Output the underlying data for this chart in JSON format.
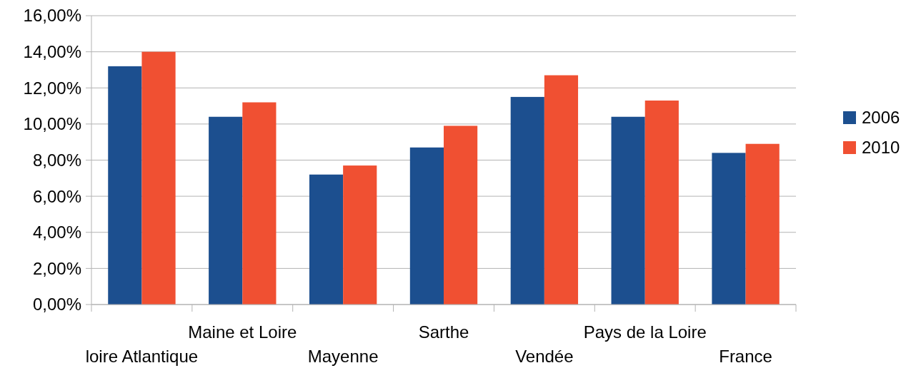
{
  "chart_data": {
    "type": "bar",
    "categories": [
      "loire Atlantique",
      "Maine et Loire",
      "Mayenne",
      "Sarthe",
      "Vendée",
      "Pays de la Loire",
      "France"
    ],
    "series": [
      {
        "name": "2006",
        "color": "#1c4f8f",
        "values": [
          13.2,
          10.4,
          7.2,
          8.7,
          11.5,
          10.4,
          8.4
        ]
      },
      {
        "name": "2010",
        "color": "#f05032",
        "values": [
          14.0,
          11.2,
          7.7,
          9.9,
          12.7,
          11.3,
          8.9
        ]
      }
    ],
    "ylim": [
      0,
      16
    ],
    "yticks": [
      {
        "value": 0,
        "label": "0,00%"
      },
      {
        "value": 2,
        "label": "2,00%"
      },
      {
        "value": 4,
        "label": "4,00%"
      },
      {
        "value": 6,
        "label": "6,00%"
      },
      {
        "value": 8,
        "label": "8,00%"
      },
      {
        "value": 10,
        "label": "10,00%"
      },
      {
        "value": 12,
        "label": "12,00%"
      },
      {
        "value": 14,
        "label": "14,00%"
      },
      {
        "value": 16,
        "label": "16,00%"
      }
    ],
    "grid": "y",
    "legend": "right"
  }
}
